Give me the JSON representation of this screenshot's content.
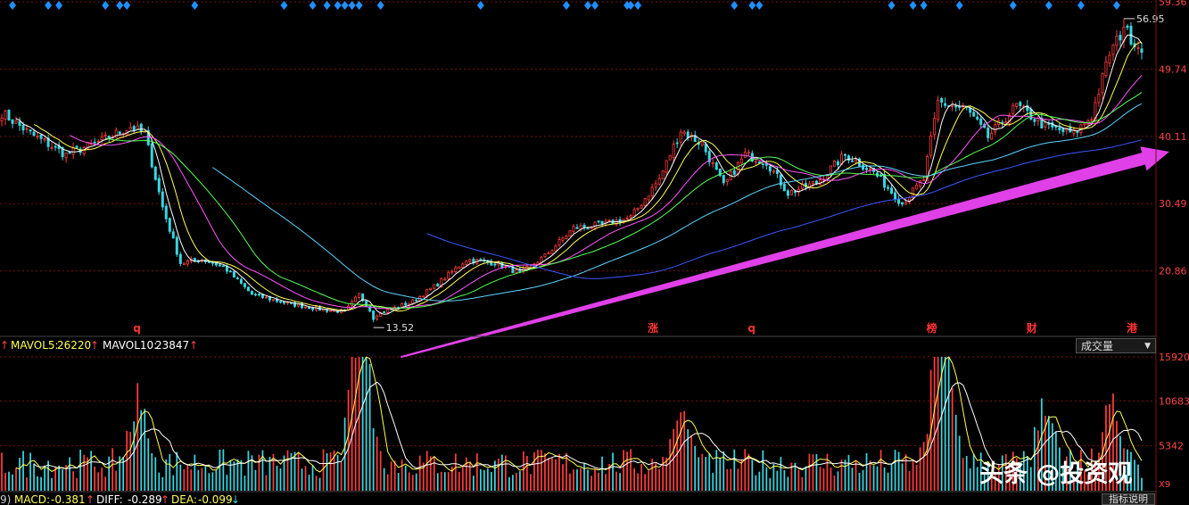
{
  "colors": {
    "up": "#ff3b3b",
    "down": "#38d6e0",
    "ma5": "#ffffff",
    "ma10": "#ffff55",
    "ma20": "#ff55ff",
    "ma30": "#55ff55",
    "ma60": "#5bd5ff",
    "ma120": "#3a58ff",
    "grid": "#7a1010",
    "axis_text": "#ff4444",
    "diamond": "#1e90ff",
    "arrow": "#e040e8",
    "event": "#ff3333"
  },
  "price_axis": {
    "labels": [
      "59.36",
      "49.74",
      "40.11",
      "30.49",
      "20.86"
    ]
  },
  "volume_axis": {
    "labels": [
      "15920",
      "10683",
      "5342"
    ],
    "bottom_label": "X9"
  },
  "annotations": {
    "high": "56.95",
    "low": "13.52"
  },
  "event_markers": [
    "q",
    "涨",
    "q",
    "榜",
    "财",
    "港"
  ],
  "volume_legend": {
    "prefix": "↑",
    "mavol5_label": "MAVOL5:",
    "mavol5_value": "26220",
    "mavol10_label": "MAVOL10:",
    "mavol10_value": "23847",
    "arrow": "↑"
  },
  "volume_selector": {
    "value": "成交量",
    "caret": "▼"
  },
  "macd_legend": {
    "prefix": "9)",
    "macd_label": "MACD:",
    "macd_value": "-0.381",
    "diff_label": "DIFF:",
    "diff_value": "-0.289",
    "dea_label": "DEA:",
    "dea_value": "-0.099",
    "up_arrow": "↑",
    "down_arrow": "↓"
  },
  "indicator_button": "指标说明",
  "watermark": "头条 @投资观",
  "chart_data": {
    "type": "candlestick",
    "price_range": [
      11.5,
      59.36
    ],
    "volume_range": [
      0,
      15920
    ],
    "high_value": 56.95,
    "low_value": 13.52,
    "trend": "rising",
    "anchors": [
      {
        "i": 0,
        "p": 43.5
      },
      {
        "i": 8,
        "p": 40.5
      },
      {
        "i": 18,
        "p": 37.5
      },
      {
        "i": 28,
        "p": 39.5
      },
      {
        "i": 36,
        "p": 41.5
      },
      {
        "i": 40,
        "p": 40.5
      },
      {
        "i": 45,
        "p": 30
      },
      {
        "i": 50,
        "p": 22
      },
      {
        "i": 56,
        "p": 22.5
      },
      {
        "i": 62,
        "p": 21.5
      },
      {
        "i": 70,
        "p": 17.5
      },
      {
        "i": 80,
        "p": 16.2
      },
      {
        "i": 90,
        "p": 15.3
      },
      {
        "i": 96,
        "p": 15
      },
      {
        "i": 100,
        "p": 17.5
      },
      {
        "i": 104,
        "p": 14.5
      },
      {
        "i": 115,
        "p": 16.5
      },
      {
        "i": 122,
        "p": 19
      },
      {
        "i": 130,
        "p": 22.5
      },
      {
        "i": 138,
        "p": 22
      },
      {
        "i": 145,
        "p": 20.5
      },
      {
        "i": 152,
        "p": 23
      },
      {
        "i": 160,
        "p": 27
      },
      {
        "i": 168,
        "p": 27.5
      },
      {
        "i": 176,
        "p": 28.5
      },
      {
        "i": 184,
        "p": 34
      },
      {
        "i": 190,
        "p": 41
      },
      {
        "i": 196,
        "p": 39
      },
      {
        "i": 202,
        "p": 33
      },
      {
        "i": 208,
        "p": 37.5
      },
      {
        "i": 214,
        "p": 36.5
      },
      {
        "i": 220,
        "p": 32
      },
      {
        "i": 228,
        "p": 33.5
      },
      {
        "i": 236,
        "p": 37.5
      },
      {
        "i": 244,
        "p": 35
      },
      {
        "i": 252,
        "p": 30.5
      },
      {
        "i": 258,
        "p": 34
      },
      {
        "i": 262,
        "p": 45
      },
      {
        "i": 270,
        "p": 44
      },
      {
        "i": 276,
        "p": 40
      },
      {
        "i": 284,
        "p": 44.5
      },
      {
        "i": 292,
        "p": 41.5
      },
      {
        "i": 300,
        "p": 40.5
      },
      {
        "i": 305,
        "p": 43
      },
      {
        "i": 310,
        "p": 52
      },
      {
        "i": 314,
        "p": 55.5
      },
      {
        "i": 318,
        "p": 53
      }
    ],
    "volume_peaks": [
      {
        "i": 38,
        "v": 9000
      },
      {
        "i": 100,
        "v": 15000
      },
      {
        "i": 101,
        "v": 12500
      },
      {
        "i": 190,
        "v": 7500
      },
      {
        "i": 262,
        "v": 12500
      },
      {
        "i": 264,
        "v": 11500
      },
      {
        "i": 292,
        "v": 6800
      },
      {
        "i": 310,
        "v": 8500
      }
    ]
  }
}
